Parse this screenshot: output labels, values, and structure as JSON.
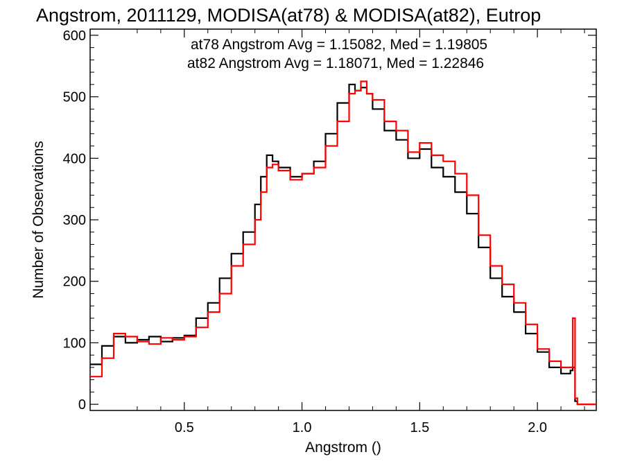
{
  "chart_data": {
    "type": "histogram",
    "title": "Angstrom, 2011129, MODISA(at78) & MODISA(at82), Eutrop",
    "xlabel": "Angstrom ()",
    "ylabel": "Number of Observations",
    "xlim": [
      0.1,
      2.25
    ],
    "ylim": [
      -10,
      610
    ],
    "xticks": [
      0.5,
      1.0,
      1.5,
      2.0
    ],
    "xtick_labels": [
      "0.5",
      "1.0",
      "1.5",
      "2.0"
    ],
    "yticks": [
      0,
      100,
      200,
      300,
      400,
      500,
      600
    ],
    "ytick_labels": [
      "0",
      "100",
      "200",
      "300",
      "400",
      "500",
      "600"
    ],
    "grid": false,
    "series": [
      {
        "name": "at78",
        "color": "#000000",
        "stats_label": "at78 Angstrom Avg = 1.15082, Med = 1.19805",
        "x": [
          0.1,
          0.15,
          0.2,
          0.25,
          0.3,
          0.35,
          0.4,
          0.45,
          0.5,
          0.55,
          0.6,
          0.65,
          0.7,
          0.75,
          0.8,
          0.825,
          0.85,
          0.875,
          0.9,
          0.95,
          1.0,
          1.05,
          1.1,
          1.15,
          1.2,
          1.225,
          1.25,
          1.275,
          1.3,
          1.35,
          1.4,
          1.45,
          1.5,
          1.55,
          1.6,
          1.65,
          1.7,
          1.75,
          1.8,
          1.85,
          1.9,
          1.95,
          2.0,
          2.05,
          2.1,
          2.14,
          2.15,
          2.16,
          2.17,
          2.25
        ],
        "y": [
          65,
          95,
          110,
          100,
          105,
          110,
          102,
          108,
          112,
          140,
          165,
          205,
          245,
          280,
          325,
          370,
          405,
          395,
          385,
          370,
          375,
          395,
          440,
          490,
          520,
          510,
          515,
          505,
          480,
          445,
          430,
          400,
          415,
          385,
          370,
          345,
          310,
          255,
          205,
          175,
          150,
          115,
          85,
          60,
          50,
          55,
          60,
          5,
          0,
          0
        ]
      },
      {
        "name": "at82",
        "color": "#ff0000",
        "stats_label": "at82 Angstrom Avg = 1.18071, Med = 1.22846",
        "x": [
          0.1,
          0.15,
          0.2,
          0.25,
          0.3,
          0.35,
          0.4,
          0.45,
          0.5,
          0.55,
          0.6,
          0.65,
          0.7,
          0.75,
          0.8,
          0.825,
          0.85,
          0.875,
          0.9,
          0.95,
          1.0,
          1.05,
          1.1,
          1.15,
          1.2,
          1.225,
          1.25,
          1.275,
          1.3,
          1.35,
          1.4,
          1.45,
          1.5,
          1.55,
          1.6,
          1.65,
          1.7,
          1.75,
          1.8,
          1.85,
          1.9,
          1.95,
          2.0,
          2.05,
          2.1,
          2.14,
          2.15,
          2.16,
          2.17,
          2.25
        ],
        "y": [
          45,
          75,
          115,
          110,
          102,
          98,
          108,
          105,
          110,
          125,
          150,
          180,
          225,
          260,
          300,
          345,
          385,
          390,
          380,
          365,
          375,
          385,
          420,
          460,
          505,
          510,
          525,
          505,
          495,
          460,
          445,
          410,
          425,
          405,
          395,
          375,
          340,
          275,
          225,
          195,
          165,
          130,
          90,
          70,
          60,
          60,
          140,
          10,
          0,
          0
        ]
      }
    ]
  }
}
